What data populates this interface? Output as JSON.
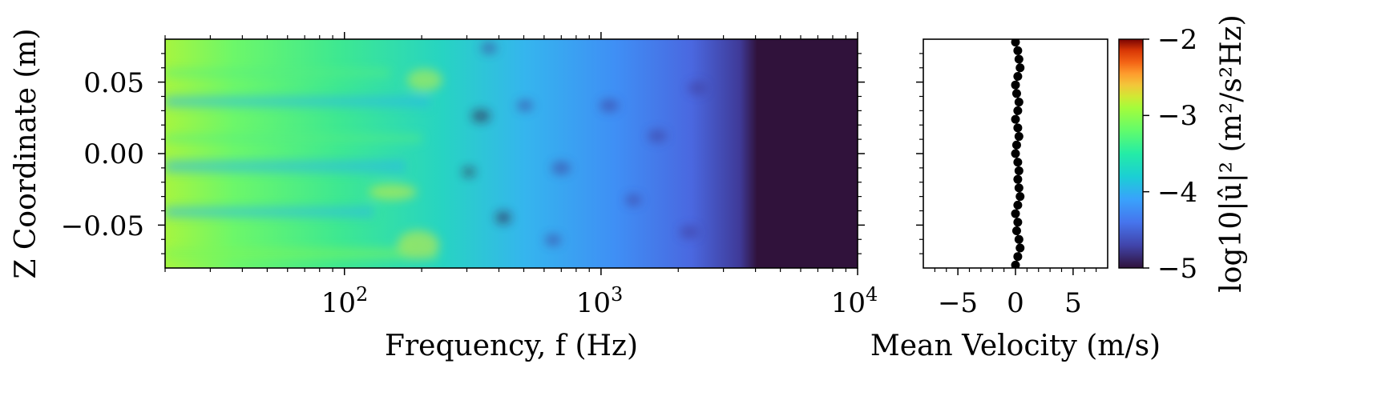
{
  "chart_data": [
    {
      "type": "heatmap",
      "title": "",
      "xlabel": "Frequency, f (Hz)",
      "ylabel": "Z Coordinate (m)",
      "x_scale": "log",
      "xlim": [
        20,
        10000
      ],
      "ylim": [
        -0.08,
        0.08
      ],
      "x_ticks": [
        {
          "value": 100,
          "base": "10",
          "exp": "2"
        },
        {
          "value": 1000,
          "base": "10",
          "exp": "3"
        },
        {
          "value": 10000,
          "base": "10",
          "exp": "4"
        }
      ],
      "y_ticks": [
        {
          "value": 0.05,
          "label": "0.05"
        },
        {
          "value": 0.0,
          "label": "0.00"
        },
        {
          "value": -0.05,
          "label": "−0.05"
        }
      ],
      "colormap": "turbo",
      "color_range": [
        -5,
        -2
      ],
      "colorbar": {
        "label": "log10|û|² (m²/s²Hz)",
        "ticks": [
          {
            "value": -2,
            "label": "−2"
          },
          {
            "value": -3,
            "label": "−3"
          },
          {
            "value": -4,
            "label": "−4"
          },
          {
            "value": -5,
            "label": "−5"
          }
        ]
      },
      "description_levels": [
        {
          "f_max": 200,
          "value": -3.8
        },
        {
          "f_max": 1000,
          "value": -4.2
        },
        {
          "f_max": 3500,
          "value": -4.5
        },
        {
          "f_max": 10000,
          "value": -5.0
        }
      ]
    },
    {
      "type": "scatter",
      "title": "",
      "xlabel": "Mean Velocity (m/s)",
      "ylabel": "",
      "xlim": [
        -8,
        8
      ],
      "ylim": [
        -0.08,
        0.08
      ],
      "x_ticks": [
        {
          "value": -5,
          "label": "−5"
        },
        {
          "value": 0,
          "label": "0"
        },
        {
          "value": 5,
          "label": "5"
        }
      ],
      "series": [
        {
          "color": "#000000",
          "points": [
            {
              "x": 0.0,
              "y": 0.078
            },
            {
              "x": 0.2,
              "y": 0.072
            },
            {
              "x": 0.3,
              "y": 0.066
            },
            {
              "x": 0.4,
              "y": 0.06
            },
            {
              "x": 0.2,
              "y": 0.054
            },
            {
              "x": 0.0,
              "y": 0.048
            },
            {
              "x": 0.1,
              "y": 0.042
            },
            {
              "x": 0.3,
              "y": 0.036
            },
            {
              "x": 0.2,
              "y": 0.03
            },
            {
              "x": 0.0,
              "y": 0.024
            },
            {
              "x": 0.2,
              "y": 0.018
            },
            {
              "x": 0.3,
              "y": 0.012
            },
            {
              "x": 0.1,
              "y": 0.006
            },
            {
              "x": 0.0,
              "y": 0.0
            },
            {
              "x": 0.2,
              "y": -0.006
            },
            {
              "x": 0.3,
              "y": -0.012
            },
            {
              "x": 0.2,
              "y": -0.018
            },
            {
              "x": 0.3,
              "y": -0.024
            },
            {
              "x": 0.4,
              "y": -0.03
            },
            {
              "x": 0.2,
              "y": -0.036
            },
            {
              "x": 0.0,
              "y": -0.042
            },
            {
              "x": 0.2,
              "y": -0.048
            },
            {
              "x": 0.1,
              "y": -0.054
            },
            {
              "x": 0.3,
              "y": -0.06
            },
            {
              "x": 0.4,
              "y": -0.066
            },
            {
              "x": 0.2,
              "y": -0.072
            },
            {
              "x": 0.0,
              "y": -0.078
            }
          ]
        }
      ]
    }
  ]
}
